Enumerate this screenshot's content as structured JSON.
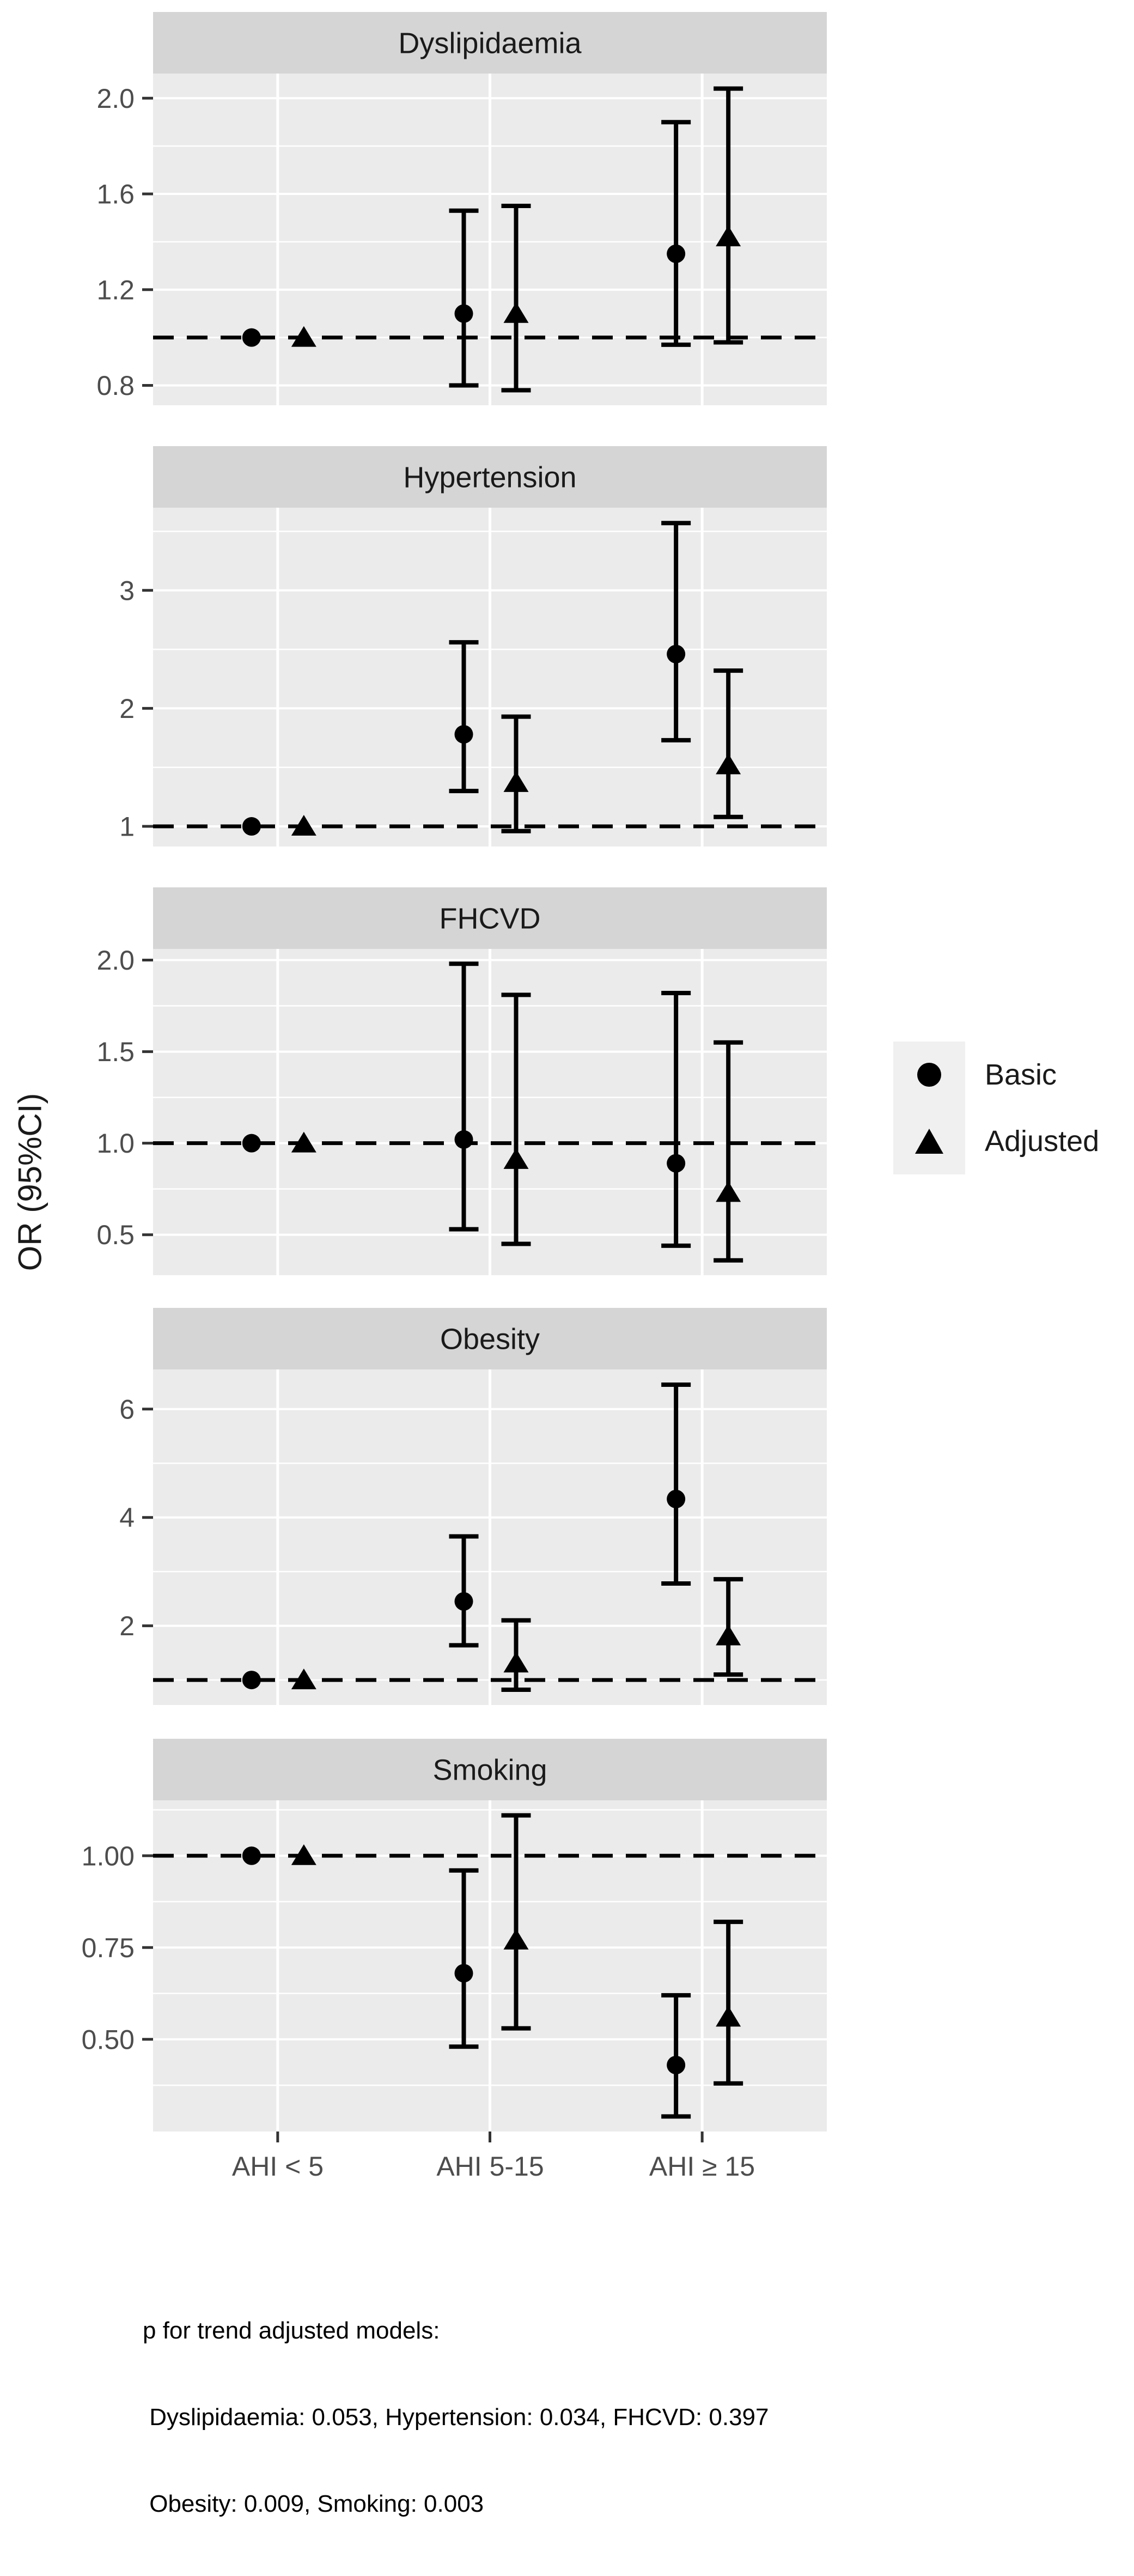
{
  "chart_data": {
    "type": "scatter",
    "subtype": "forest-plot-with-ci",
    "title": "",
    "ylabel": "OR (95%CI)",
    "xlabel": "",
    "categories": [
      "AHI < 5",
      "AHI 5-15",
      "AHI ≥ 15"
    ],
    "series_names": [
      "Basic",
      "Adjusted"
    ],
    "reference_line": 1.0,
    "grid": "on",
    "facets": [
      {
        "title": "Dyslipidaemia",
        "yticks": [
          {
            "v": 0.8,
            "label": "0.8"
          },
          {
            "v": 1.2,
            "label": "1.2"
          },
          {
            "v": 1.6,
            "label": "1.6"
          },
          {
            "v": 2.0,
            "label": "2.0"
          }
        ],
        "series": [
          {
            "name": "Basic",
            "marker": "circle",
            "points": [
              {
                "or": 1.0,
                "lo": null,
                "hi": null
              },
              {
                "or": 1.1,
                "lo": 0.8,
                "hi": 1.53
              },
              {
                "or": 1.35,
                "lo": 0.97,
                "hi": 1.9
              }
            ]
          },
          {
            "name": "Adjusted",
            "marker": "triangle",
            "points": [
              {
                "or": 1.0,
                "lo": null,
                "hi": null
              },
              {
                "or": 1.1,
                "lo": 0.78,
                "hi": 1.55
              },
              {
                "or": 1.42,
                "lo": 0.98,
                "hi": 2.04
              }
            ]
          }
        ]
      },
      {
        "title": "Hypertension",
        "yticks": [
          {
            "v": 1,
            "label": "1"
          },
          {
            "v": 2,
            "label": "2"
          },
          {
            "v": 3,
            "label": "3"
          }
        ],
        "series": [
          {
            "name": "Basic",
            "marker": "circle",
            "points": [
              {
                "or": 1.0,
                "lo": null,
                "hi": null
              },
              {
                "or": 1.78,
                "lo": 1.3,
                "hi": 2.56
              },
              {
                "or": 2.46,
                "lo": 1.73,
                "hi": 3.57
              }
            ]
          },
          {
            "name": "Adjusted",
            "marker": "triangle",
            "points": [
              {
                "or": 1.0,
                "lo": null,
                "hi": null
              },
              {
                "or": 1.37,
                "lo": 0.96,
                "hi": 1.93
              },
              {
                "or": 1.52,
                "lo": 1.08,
                "hi": 2.32
              }
            ]
          }
        ]
      },
      {
        "title": "FHCVD",
        "yticks": [
          {
            "v": 0.5,
            "label": "0.5"
          },
          {
            "v": 1.0,
            "label": "1.0"
          },
          {
            "v": 1.5,
            "label": "1.5"
          },
          {
            "v": 2.0,
            "label": "2.0"
          }
        ],
        "series": [
          {
            "name": "Basic",
            "marker": "circle",
            "points": [
              {
                "or": 1.0,
                "lo": null,
                "hi": null
              },
              {
                "or": 1.02,
                "lo": 0.53,
                "hi": 1.98
              },
              {
                "or": 0.89,
                "lo": 0.44,
                "hi": 1.82
              }
            ]
          },
          {
            "name": "Adjusted",
            "marker": "triangle",
            "points": [
              {
                "or": 1.0,
                "lo": null,
                "hi": null
              },
              {
                "or": 0.91,
                "lo": 0.45,
                "hi": 1.81
              },
              {
                "or": 0.73,
                "lo": 0.36,
                "hi": 1.55
              }
            ]
          }
        ]
      },
      {
        "title": "Obesity",
        "yticks": [
          {
            "v": 2,
            "label": "2"
          },
          {
            "v": 4,
            "label": "4"
          },
          {
            "v": 6,
            "label": "6"
          }
        ],
        "series": [
          {
            "name": "Basic",
            "marker": "circle",
            "points": [
              {
                "or": 1.0,
                "lo": null,
                "hi": null
              },
              {
                "or": 2.45,
                "lo": 1.64,
                "hi": 3.65
              },
              {
                "or": 4.34,
                "lo": 2.78,
                "hi": 6.45
              }
            ]
          },
          {
            "name": "Adjusted",
            "marker": "triangle",
            "points": [
              {
                "or": 1.0,
                "lo": null,
                "hi": null
              },
              {
                "or": 1.31,
                "lo": 0.82,
                "hi": 2.1
              },
              {
                "or": 1.81,
                "lo": 1.1,
                "hi": 2.86
              }
            ]
          }
        ]
      },
      {
        "title": "Smoking",
        "yticks": [
          {
            "v": 0.5,
            "label": "0.50"
          },
          {
            "v": 0.75,
            "label": "0.75"
          },
          {
            "v": 1.0,
            "label": "1.00"
          }
        ],
        "series": [
          {
            "name": "Basic",
            "marker": "circle",
            "points": [
              {
                "or": 1.0,
                "lo": null,
                "hi": null
              },
              {
                "or": 0.68,
                "lo": 0.48,
                "hi": 0.96
              },
              {
                "or": 0.43,
                "lo": 0.29,
                "hi": 0.62
              }
            ]
          },
          {
            "name": "Adjusted",
            "marker": "triangle",
            "points": [
              {
                "or": 1.0,
                "lo": null,
                "hi": null
              },
              {
                "or": 0.77,
                "lo": 0.53,
                "hi": 1.11
              },
              {
                "or": 0.56,
                "lo": 0.38,
                "hi": 0.82
              }
            ]
          }
        ]
      }
    ],
    "legend": {
      "position": "right",
      "items": [
        {
          "label": "Basic",
          "marker": "circle"
        },
        {
          "label": "Adjusted",
          "marker": "triangle"
        }
      ]
    },
    "footnote": [
      "p for trend adjusted models:",
      " Dyslipidaemia: 0.053, Hypertension: 0.034, FHCVD: 0.397",
      " Obesity: 0.009, Smoking: 0.003"
    ],
    "colors": {
      "background": "#FFFFFF",
      "panel_bg": "#EBEBEB",
      "strip_bg": "#D5D5D5",
      "gridline": "#FFFFFF",
      "marker": "#000000",
      "reference_line": "#000000",
      "axis_text": "#4D4D4D",
      "title_text": "#1A1A1A",
      "legend_key_bg": "#F0F0F0"
    }
  }
}
